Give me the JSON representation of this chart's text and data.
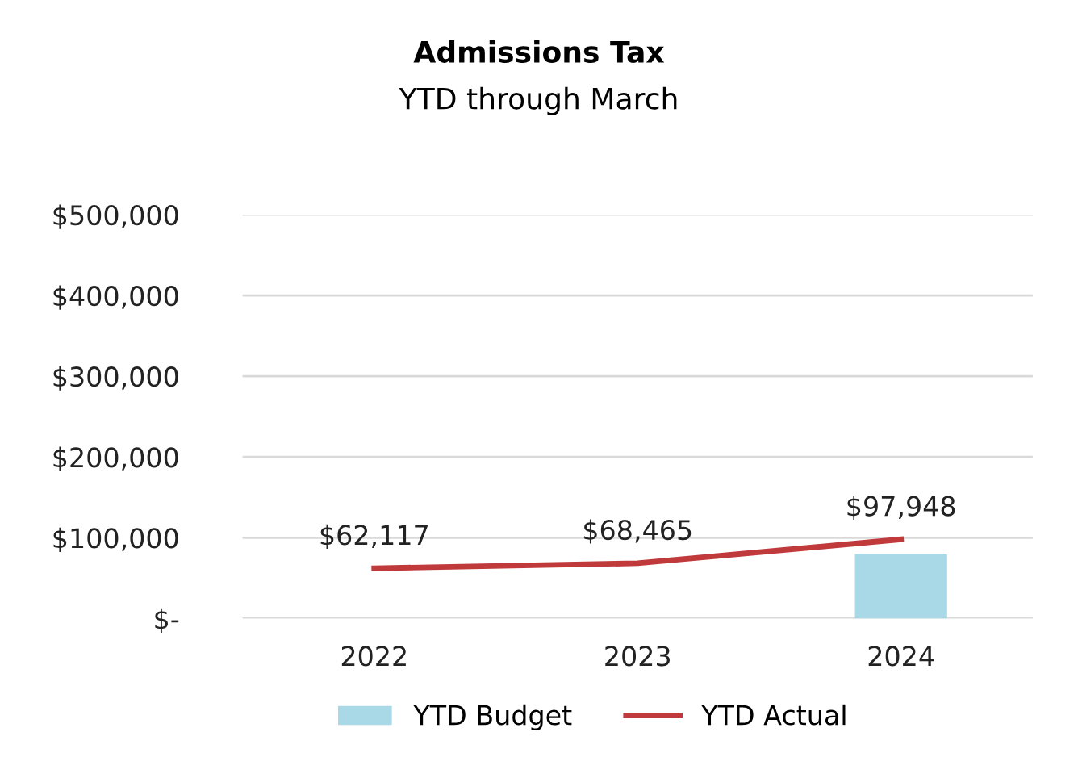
{
  "chart_data": {
    "type": "bar",
    "title": "Admissions Tax",
    "subtitle": "YTD through March",
    "categories": [
      "2022",
      "2023",
      "2024"
    ],
    "series": [
      {
        "name": "YTD Budget",
        "color": "#a9d8e6",
        "values": [
          null,
          null,
          80000
        ]
      },
      {
        "name": "YTD Actual",
        "type": "line",
        "color": "#c0393b",
        "values": [
          62117,
          68465,
          97948
        ],
        "value_labels": [
          "$62,117",
          "$68,465",
          "$97,948"
        ]
      }
    ],
    "ylim": [
      0,
      500000
    ],
    "yticks": [
      {
        "value": 0,
        "label": "$-"
      },
      {
        "value": 100000,
        "label": "$100,000"
      },
      {
        "value": 200000,
        "label": "$200,000"
      },
      {
        "value": 300000,
        "label": "$300,000"
      },
      {
        "value": 400000,
        "label": "$400,000"
      },
      {
        "value": 500000,
        "label": "$500,000"
      }
    ],
    "grid": "y",
    "legend": "bottom"
  }
}
